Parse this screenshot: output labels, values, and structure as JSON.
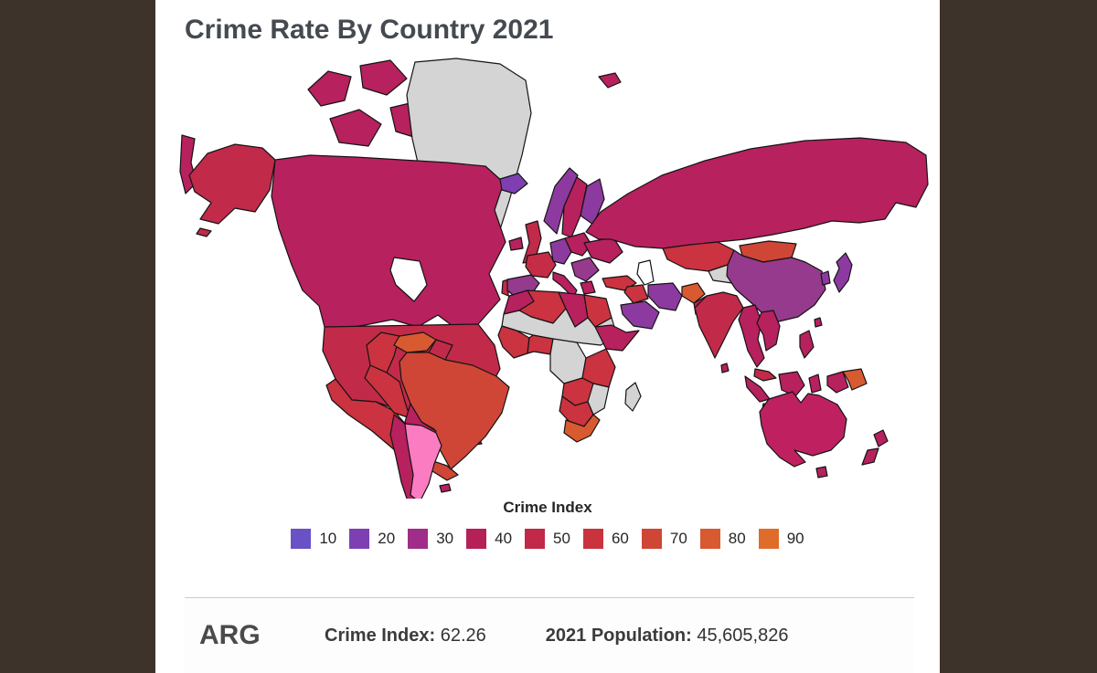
{
  "window": {
    "background": "#3e332a"
  },
  "card": {
    "background": "#ffffff"
  },
  "header": {
    "title": "Crime Rate By Country 2021"
  },
  "legend": {
    "title": "Crime Index",
    "items": [
      {
        "label": "10",
        "color": "#6a51c6"
      },
      {
        "label": "20",
        "color": "#7e3fb3"
      },
      {
        "label": "30",
        "color": "#a02d87"
      },
      {
        "label": "40",
        "color": "#b52058"
      },
      {
        "label": "50",
        "color": "#c22847"
      },
      {
        "label": "60",
        "color": "#ca333e"
      },
      {
        "label": "70",
        "color": "#cf4636"
      },
      {
        "label": "80",
        "color": "#d85a31"
      },
      {
        "label": "90",
        "color": "#e06c2b"
      }
    ]
  },
  "info_bar": {
    "country_code": "ARG",
    "crime_index_label": "Crime Index:",
    "crime_index_value": "62.26",
    "population_label": "2021 Population:",
    "population_value": "45,605,826"
  },
  "map": {
    "border_color": "#141414",
    "water_color": "#ffffff",
    "no_data_color": "#d4d4d4",
    "selected_color": "#fb7cc1",
    "selected_country": "ARG",
    "regions": {
      "russia-wrap": "#b7215e",
      "alaska": "#c22a49",
      "aleutians": "#c22a49",
      "canada-islands-1": "#b7215e",
      "canada-islands-2": "#b7215e",
      "canada-islands-3": "#b7215e",
      "canada-islands-4": "#b7215e",
      "canada-islands-5": "#b7215e",
      "greenland": "#d4d4d4",
      "canada": "#b7215e",
      "usa": "#c22a49",
      "mexico": "#ca333f",
      "central-america": "#cf4636",
      "cuba": "#b7215e",
      "hispaniola": "#b7215e",
      "colombia": "#ca333f",
      "venezuela": "#d85a31",
      "guyanas": "#c22a49",
      "brazil": "#cf4636",
      "peru": "#ca333f",
      "bolivia": "#b7215e",
      "chile": "#b7215e",
      "argentina": "#fb7cc1",
      "falklands": "#b7215e",
      "iceland": "#7f3fb2",
      "ireland": "#b7215e",
      "uk": "#c22a49",
      "norway": "#8d3aa0",
      "sweden": "#b7215e",
      "finland": "#8d3aa0",
      "svalbard": "#b7215e",
      "spain": "#953a8c",
      "portugal": "#c22a49",
      "france": "#c52c46",
      "germany": "#8d3aa0",
      "poland": "#b7215e",
      "balkans": "#953a8c",
      "ukraine": "#b7215e",
      "italy": "#b7215e",
      "greece": "#b7215e",
      "morocco": "#b7215e",
      "algeria": "#ca333f",
      "libya": "#b7215e",
      "egypt": "#ca333f",
      "sahel": "#d4d4d4",
      "west-africa": "#ca333f",
      "nigeria": "#ca333f",
      "central-africa": "#d4d4d4",
      "horn-of-africa": "#b7215e",
      "east-africa": "#ca333f",
      "angola-zambia": "#ca333f",
      "mozambique": "#d4d4d4",
      "namibia-botswana": "#ca333f",
      "south-africa": "#d85a31",
      "madagascar": "#d4d4d4",
      "turkey": "#ca333f",
      "iraq-syria": "#ca333f",
      "saudi-arabia": "#8d3aa0",
      "iran": "#8d3aa0",
      "afghanistan": "#d85a31",
      "pakistan": "#b7215e",
      "russia": "#b7215e",
      "kazakhstan": "#ca333f",
      "central-asia": "#d4d4d4",
      "mongolia": "#cf4636",
      "china": "#953a8c",
      "india": "#c22a49",
      "sri-lanka": "#b7215e",
      "myanmar-thailand": "#b7215e",
      "indochina": "#b7215e",
      "malaysia": "#c22a49",
      "sumatra": "#b7215e",
      "java": "#b7215e",
      "borneo": "#b7215e",
      "sulawesi": "#b7215e",
      "west-papua": "#b7215e",
      "papua-new-guinea": "#d85a31",
      "philippines": "#b7215e",
      "japan": "#8d3aa0",
      "korea": "#8d3aa0",
      "taiwan": "#b7215e",
      "australia": "#bf2160",
      "tasmania": "#b7215e",
      "new-zealand-north": "#b7215e",
      "new-zealand-south": "#b7215e"
    }
  },
  "chart_data": {
    "type": "choropleth",
    "title": "Crime Rate By Country 2021",
    "colorbar_title": "Crime Index",
    "scale_ticks": [
      10,
      20,
      30,
      40,
      50,
      60,
      70,
      80,
      90
    ],
    "scale_colors": [
      "#6a51c6",
      "#7e3fb3",
      "#a02d87",
      "#b52058",
      "#c22847",
      "#ca333e",
      "#cf4636",
      "#d85a31",
      "#e06c2b"
    ],
    "no_data_color": "#d4d4d4",
    "legend_position": "bottom-center",
    "selected": {
      "country_code": "ARG",
      "crime_index": 62.26,
      "population_2021": 45605826
    }
  }
}
